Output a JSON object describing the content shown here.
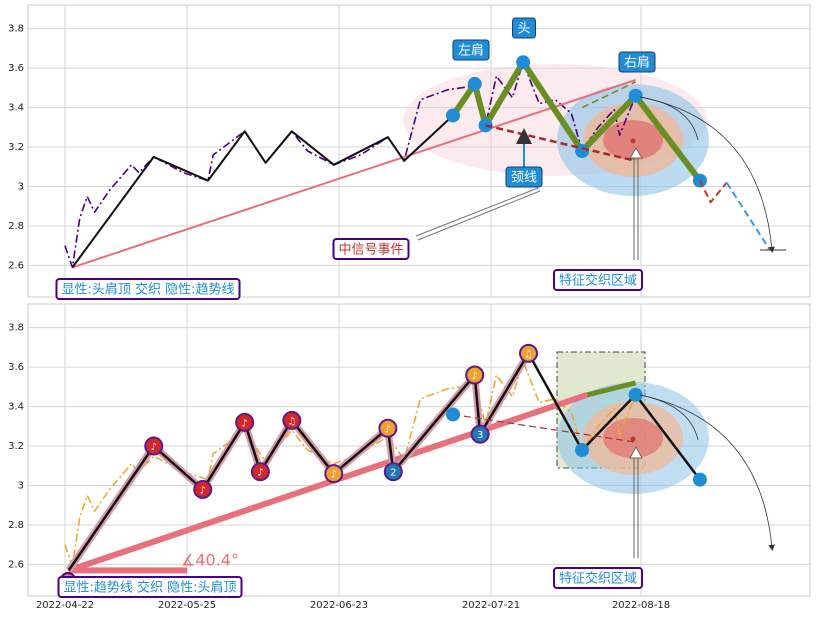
{
  "chart_data": [
    {
      "type": "line",
      "ylim": [
        2.44,
        3.92
      ],
      "yticks": [
        2.6,
        2.8,
        3.0,
        3.2,
        3.4,
        3.6,
        3.8
      ],
      "grid": true,
      "series": [
        {
          "color": "#4b0082",
          "dash": "dash-dot",
          "width": 1.6,
          "x": [
            "2022-04-22",
            "2022-04-24",
            "2022-04-26",
            "2022-04-28",
            "2022-04-30",
            "2022-05-04",
            "2022-05-10",
            "2022-05-12",
            "2022-05-16",
            "2022-05-24",
            "2022-05-29",
            "2022-05-30",
            "2022-06-05",
            "2022-06-09",
            "2022-06-14",
            "2022-06-17",
            "2022-06-22",
            "2022-06-27",
            "2022-07-02",
            "2022-07-05",
            "2022-07-08",
            "2022-07-13",
            "2022-07-18",
            "2022-07-20",
            "2022-07-22",
            "2022-07-25",
            "2022-07-27",
            "2022-07-30",
            "2022-08-02",
            "2022-08-05",
            "2022-08-07",
            "2022-08-10",
            "2022-08-13",
            "2022-08-14",
            "2022-08-17"
          ],
          "values": [
            2.7,
            2.59,
            2.84,
            2.95,
            2.87,
            2.98,
            3.11,
            3.07,
            3.15,
            3.07,
            3.03,
            3.16,
            3.28,
            3.12,
            3.28,
            3.18,
            3.11,
            3.16,
            3.25,
            3.13,
            3.44,
            3.49,
            3.51,
            3.31,
            3.56,
            3.45,
            3.63,
            3.42,
            3.44,
            3.37,
            3.18,
            3.3,
            3.39,
            3.26,
            3.46
          ]
        },
        {
          "color": "#e8707a",
          "width": 2,
          "x": [
            "2022-04-24",
            "2022-08-17"
          ],
          "values": [
            2.59,
            3.54
          ]
        },
        {
          "color": "#111111",
          "width": 2,
          "x": [
            "2022-04-24",
            "2022-05-16",
            "2022-05-29",
            "2022-06-05",
            "2022-06-09",
            "2022-06-14",
            "2022-06-22",
            "2022-07-02",
            "2022-07-05",
            "2022-07-14",
            "2022-07-18",
            "2022-07-20",
            "2022-07-27",
            "2022-08-07",
            "2022-08-17",
            "2022-08-29"
          ],
          "values": [
            2.59,
            3.15,
            3.03,
            3.28,
            3.12,
            3.28,
            3.11,
            3.25,
            3.13,
            3.36,
            3.52,
            3.31,
            3.63,
            3.18,
            3.46,
            3.03
          ]
        },
        {
          "color": "#6b8e23",
          "width": 6,
          "dots": true,
          "x": [
            "2022-07-14",
            "2022-07-18",
            "2022-07-20",
            "2022-07-27",
            "2022-08-07",
            "2022-08-17",
            "2022-08-29"
          ],
          "values": [
            3.36,
            3.52,
            3.31,
            3.63,
            3.18,
            3.46,
            3.03
          ]
        },
        {
          "color": "#a52a2a",
          "dash": "dash",
          "width": 2.5,
          "x": [
            "2022-07-20",
            "2022-08-17"
          ],
          "values": [
            3.31,
            3.13
          ]
        },
        {
          "color": "#6b8e23",
          "dash": "dash",
          "width": 1.5,
          "x": [
            "2022-08-07",
            "2022-08-17"
          ],
          "values": [
            3.4,
            3.53
          ]
        },
        {
          "color": "#c0392b",
          "dash": "dash",
          "width": 2,
          "x": [
            "2022-08-29",
            "2022-08-31",
            "2022-09-03"
          ],
          "values": [
            3.03,
            2.92,
            3.02
          ]
        },
        {
          "color": "#3a9ad9",
          "dash": "dash",
          "width": 2,
          "x": [
            "2022-09-03",
            "2022-09-11"
          ],
          "values": [
            3.02,
            2.68
          ]
        }
      ],
      "annotations": [
        {
          "text": "左肩"
        },
        {
          "text": "头"
        },
        {
          "text": "右肩"
        },
        {
          "text": "颈线"
        },
        {
          "text": "中信号事件"
        },
        {
          "text": "特征交织区域"
        },
        {
          "text": "显性:头肩顶 交织 隐性:趋势线"
        }
      ]
    },
    {
      "type": "line",
      "ylim": [
        2.44,
        3.92
      ],
      "yticks": [
        2.6,
        2.8,
        3.0,
        3.2,
        3.4,
        3.6,
        3.8
      ],
      "grid": true,
      "xticks": [
        "2022-04-22",
        "2022-05-25",
        "2022-06-23",
        "2022-07-21",
        "2022-08-18"
      ],
      "series": [
        {
          "color": "#f0a830",
          "dash": "dash-dot",
          "width": 1.6,
          "x": [
            "2022-04-22",
            "2022-04-24",
            "2022-04-26",
            "2022-04-28",
            "2022-04-30",
            "2022-05-04",
            "2022-05-10",
            "2022-05-12",
            "2022-05-16",
            "2022-05-24",
            "2022-05-29",
            "2022-05-30",
            "2022-06-05",
            "2022-06-09",
            "2022-06-14",
            "2022-06-17",
            "2022-06-22",
            "2022-06-27",
            "2022-07-02",
            "2022-07-05",
            "2022-07-08",
            "2022-07-13",
            "2022-07-18",
            "2022-07-20",
            "2022-07-22",
            "2022-07-25",
            "2022-07-27",
            "2022-07-30",
            "2022-08-02",
            "2022-08-05",
            "2022-08-07",
            "2022-08-10",
            "2022-08-13",
            "2022-08-14",
            "2022-08-17"
          ],
          "values": [
            2.7,
            2.59,
            2.84,
            2.95,
            2.87,
            2.98,
            3.11,
            3.07,
            3.15,
            3.07,
            3.03,
            3.16,
            3.28,
            3.12,
            3.28,
            3.18,
            3.11,
            3.16,
            3.25,
            3.13,
            3.44,
            3.49,
            3.51,
            3.31,
            3.56,
            3.45,
            3.63,
            3.42,
            3.44,
            3.37,
            3.18,
            3.3,
            3.39,
            3.26,
            3.46
          ]
        },
        {
          "color": "#e8707a",
          "width": 6,
          "x": [
            "2022-04-23",
            "2022-08-08"
          ],
          "values": [
            2.57,
            3.46
          ]
        },
        {
          "color": "#e8707a",
          "width": 6,
          "x": [
            "2022-04-23",
            "2022-05-25"
          ],
          "values": [
            2.57,
            2.57
          ]
        },
        {
          "color": "#d89aa8",
          "width": 7,
          "x": [
            "2022-04-23",
            "2022-05-16",
            "2022-05-28",
            "2022-06-05",
            "2022-06-08",
            "2022-06-14",
            "2022-06-22",
            "2022-07-02",
            "2022-07-03",
            "2022-07-18",
            "2022-07-19",
            "2022-07-28"
          ],
          "values": [
            2.57,
            3.2,
            2.98,
            3.32,
            3.07,
            3.33,
            3.06,
            3.29,
            3.07,
            3.56,
            3.26,
            3.67
          ]
        },
        {
          "color": "#111111",
          "width": 2.5,
          "x": [
            "2022-04-23",
            "2022-05-16",
            "2022-05-28",
            "2022-06-05",
            "2022-06-08",
            "2022-06-14",
            "2022-06-22",
            "2022-07-02",
            "2022-07-03",
            "2022-07-18",
            "2022-07-19",
            "2022-07-28",
            "2022-08-07",
            "2022-08-17",
            "2022-08-29"
          ],
          "values": [
            2.57,
            3.2,
            2.98,
            3.32,
            3.07,
            3.33,
            3.06,
            3.29,
            3.07,
            3.56,
            3.26,
            3.67,
            3.18,
            3.46,
            3.03
          ]
        },
        {
          "color": "#b03030",
          "dash": "dash",
          "width": 1.2,
          "x": [
            "2022-07-14",
            "2022-08-17"
          ],
          "values": [
            3.36,
            3.22
          ]
        },
        {
          "color": "#6b8e23",
          "width": 5,
          "x": [
            "2022-08-08",
            "2022-08-17"
          ],
          "values": [
            3.46,
            3.52
          ]
        },
        {
          "color": "#1f8dd6",
          "width": 0,
          "dots": true,
          "x": [
            "2022-07-14",
            "2022-08-07",
            "2022-08-17",
            "2022-08-29"
          ],
          "values": [
            3.36,
            3.18,
            3.46,
            3.03
          ]
        }
      ],
      "markers": {
        "x": [
          "2022-05-16",
          "2022-05-28",
          "2022-06-05",
          "2022-06-08",
          "2022-06-14",
          "2022-06-22",
          "2022-07-02",
          "2022-07-03",
          "2022-07-18",
          "2022-07-19",
          "2022-07-28"
        ],
        "values": [
          3.2,
          2.98,
          3.32,
          3.07,
          3.33,
          3.06,
          3.29,
          3.07,
          3.56,
          3.26,
          3.67
        ],
        "labels": [
          "♪",
          "♪",
          "♪",
          "♪",
          "♫",
          "♪",
          "♪",
          "2",
          "♪",
          "3",
          "♫"
        ],
        "colors": [
          "#d62728",
          "#d62728",
          "#d62728",
          "#d62728",
          "#d62728",
          "#f0a030",
          "#f0a030",
          "#1f77b4",
          "#f0a030",
          "#1f77b4",
          "#f0a030"
        ]
      },
      "annotations": [
        {
          "text": "特征交织区域"
        },
        {
          "text": "显性:趋势线 交织 隐性:头肩顶"
        },
        {
          "text": "∡40.4°"
        }
      ]
    }
  ]
}
